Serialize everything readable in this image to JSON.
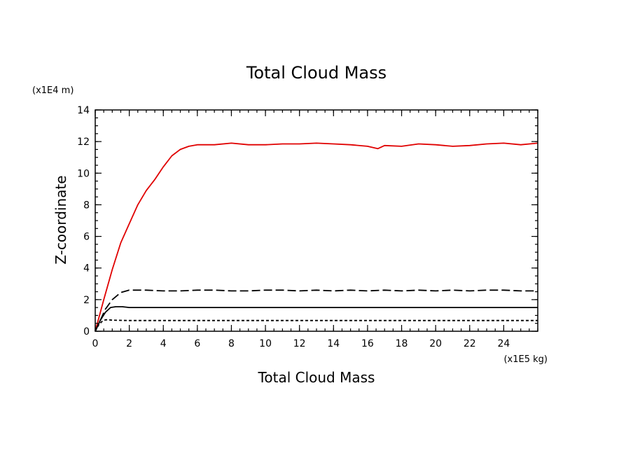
{
  "chart_data": {
    "type": "line",
    "title": "Total Cloud Mass",
    "xlabel": "Total Cloud Mass",
    "ylabel": "Z-coordinate",
    "x_unit": "(x1E5 kg)",
    "y_unit": "(x1E4 m)",
    "xlim": [
      0,
      26
    ],
    "ylim": [
      0,
      14
    ],
    "x_ticks": [
      0,
      2,
      4,
      6,
      8,
      10,
      12,
      14,
      16,
      18,
      20,
      22,
      24
    ],
    "y_ticks": [
      0,
      2,
      4,
      6,
      8,
      10,
      12,
      14
    ],
    "grid": false,
    "colors": {
      "red": "#e00000",
      "black": "#000000"
    },
    "series": [
      {
        "color": "#e00000",
        "dash": "solid",
        "x": [
          0,
          0.5,
          1,
          1.5,
          2,
          2.5,
          3,
          3.5,
          4,
          4.5,
          5,
          5.5,
          6,
          7,
          8,
          9,
          10,
          11,
          12,
          13,
          14,
          15,
          16,
          16.6,
          17,
          18,
          19,
          20,
          21,
          22,
          23,
          24,
          25,
          26
        ],
        "y": [
          0,
          2.0,
          3.9,
          5.6,
          6.8,
          8.0,
          8.9,
          9.6,
          10.4,
          11.1,
          11.5,
          11.7,
          11.8,
          11.8,
          11.9,
          11.8,
          11.8,
          11.85,
          11.85,
          11.9,
          11.85,
          11.8,
          11.7,
          11.55,
          11.75,
          11.7,
          11.85,
          11.8,
          11.7,
          11.75,
          11.85,
          11.9,
          11.8,
          11.9
        ]
      },
      {
        "color": "#000000",
        "dash": "long-dash",
        "x": [
          0,
          0.3,
          0.6,
          1,
          1.5,
          2,
          3,
          4,
          5,
          6,
          7,
          8,
          9,
          10,
          11,
          12,
          13,
          14,
          15,
          16,
          17,
          18,
          19,
          20,
          21,
          22,
          23,
          24,
          25,
          26
        ],
        "y": [
          0,
          0.7,
          1.4,
          2.0,
          2.45,
          2.6,
          2.6,
          2.55,
          2.55,
          2.6,
          2.6,
          2.55,
          2.55,
          2.6,
          2.6,
          2.55,
          2.6,
          2.55,
          2.6,
          2.55,
          2.6,
          2.55,
          2.6,
          2.55,
          2.6,
          2.55,
          2.6,
          2.6,
          2.55,
          2.55
        ]
      },
      {
        "color": "#000000",
        "dash": "solid",
        "x": [
          0,
          0.3,
          0.6,
          0.9,
          1.2,
          1.6,
          2,
          3,
          4,
          5,
          6,
          7,
          8,
          9,
          10,
          11,
          12,
          13,
          14,
          15,
          16,
          17,
          18,
          19,
          20,
          21,
          22,
          23,
          24,
          25,
          26
        ],
        "y": [
          0,
          0.7,
          1.2,
          1.5,
          1.55,
          1.55,
          1.5,
          1.5,
          1.5,
          1.5,
          1.5,
          1.5,
          1.5,
          1.5,
          1.5,
          1.5,
          1.5,
          1.5,
          1.5,
          1.5,
          1.5,
          1.5,
          1.5,
          1.5,
          1.5,
          1.5,
          1.5,
          1.5,
          1.5,
          1.5,
          1.5
        ]
      },
      {
        "color": "#000000",
        "dash": "short-dash",
        "x": [
          0,
          0.2,
          0.4,
          0.6,
          0.8,
          1,
          2,
          4,
          6,
          8,
          10,
          12,
          14,
          16,
          18,
          20,
          22,
          24,
          26
        ],
        "y": [
          0,
          0.4,
          0.62,
          0.72,
          0.72,
          0.7,
          0.68,
          0.68,
          0.68,
          0.68,
          0.68,
          0.68,
          0.68,
          0.68,
          0.68,
          0.68,
          0.68,
          0.68,
          0.68
        ]
      }
    ]
  }
}
